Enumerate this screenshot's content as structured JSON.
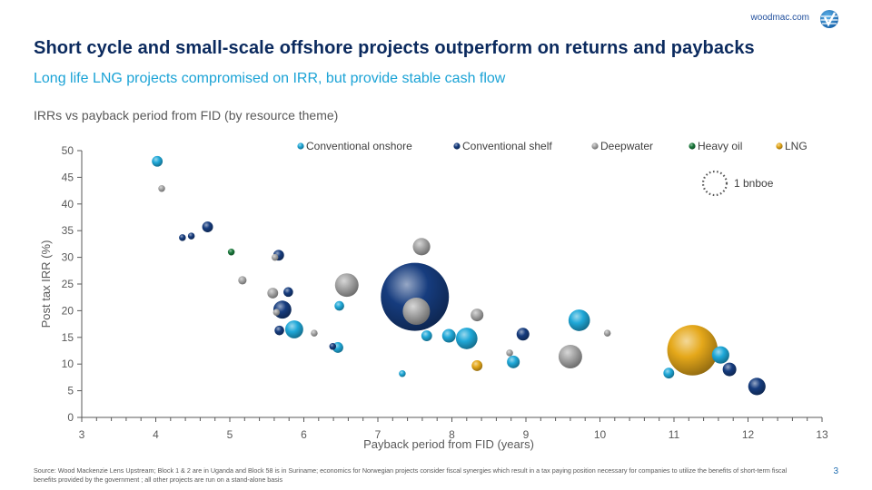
{
  "header": {
    "site": "woodmac.com",
    "logo_icon": "woodmac-globe-icon",
    "title": "Short cycle and small-scale  offshore projects outperform  on returns and paybacks",
    "subtitle": "Long life LNG projects compromised on IRR, but provide stable cash flow"
  },
  "chart_title": "IRRs vs payback period from FID (by resource theme)",
  "footer": {
    "source": "Source: Wood Mackenzie Lens Upstream; Block 1 & 2 are in Uganda and Block 58 is in Suriname; economics for Norwegian projects consider fiscal synergies which result in a tax paying position necessary for companies to utilize the benefits of short-term fiscal benefits provided by the government ; all other projects are run on a stand-alone basis",
    "page_number": "3"
  },
  "chart_data": {
    "type": "scatter",
    "title": "IRRs vs payback period from FID (by resource theme)",
    "xlabel": "Payback period from FID (years)",
    "ylabel": "Post tax IRR (%)",
    "xlim": [
      3,
      13
    ],
    "ylim": [
      0,
      50
    ],
    "xticks": [
      "3",
      "4",
      "5",
      "6",
      "7",
      "8",
      "9",
      "10",
      "11",
      "12",
      "13"
    ],
    "yticks": [
      "0",
      "5",
      "10",
      "15",
      "20",
      "25",
      "30",
      "35",
      "40",
      "45",
      "50"
    ],
    "grid": false,
    "legend_position": "top",
    "size_reference": {
      "label": "1 bnboe",
      "size": 1.0
    },
    "series": [
      {
        "name": "Conventional onshore",
        "color": "#1fa8d8",
        "points": [
          {
            "x": 4.02,
            "y": 48.0,
            "size": 0.05
          },
          {
            "x": 5.87,
            "y": 16.5,
            "size": 0.14
          },
          {
            "x": 6.46,
            "y": 13.1,
            "size": 0.05
          },
          {
            "x": 6.48,
            "y": 20.9,
            "size": 0.04
          },
          {
            "x": 7.33,
            "y": 8.2,
            "size": 0.02
          },
          {
            "x": 7.66,
            "y": 15.3,
            "size": 0.05
          },
          {
            "x": 7.96,
            "y": 15.3,
            "size": 0.08
          },
          {
            "x": 8.2,
            "y": 14.8,
            "size": 0.2
          },
          {
            "x": 8.83,
            "y": 10.4,
            "size": 0.07
          },
          {
            "x": 9.72,
            "y": 18.2,
            "size": 0.2
          },
          {
            "x": 10.93,
            "y": 8.3,
            "size": 0.05
          },
          {
            "x": 11.63,
            "y": 11.7,
            "size": 0.13
          }
        ]
      },
      {
        "name": "Conventional shelf",
        "color": "#163c7e",
        "points": [
          {
            "x": 4.36,
            "y": 33.7,
            "size": 0.02
          },
          {
            "x": 4.48,
            "y": 34.0,
            "size": 0.02
          },
          {
            "x": 4.7,
            "y": 35.7,
            "size": 0.05
          },
          {
            "x": 5.66,
            "y": 30.4,
            "size": 0.05
          },
          {
            "x": 5.79,
            "y": 23.5,
            "size": 0.04
          },
          {
            "x": 5.71,
            "y": 20.2,
            "size": 0.14
          },
          {
            "x": 5.67,
            "y": 16.3,
            "size": 0.04
          },
          {
            "x": 6.39,
            "y": 13.3,
            "size": 0.02
          },
          {
            "x": 7.5,
            "y": 22.6,
            "size": 2.0
          },
          {
            "x": 8.96,
            "y": 15.6,
            "size": 0.07
          },
          {
            "x": 11.75,
            "y": 9.0,
            "size": 0.08
          },
          {
            "x": 12.12,
            "y": 5.8,
            "size": 0.13
          }
        ]
      },
      {
        "name": "Deepwater",
        "color": "#a6a6a6",
        "points": [
          {
            "x": 4.08,
            "y": 42.9,
            "size": 0.02
          },
          {
            "x": 5.17,
            "y": 25.7,
            "size": 0.03
          },
          {
            "x": 5.61,
            "y": 30.0,
            "size": 0.02
          },
          {
            "x": 5.58,
            "y": 23.3,
            "size": 0.05
          },
          {
            "x": 5.63,
            "y": 19.7,
            "size": 0.02
          },
          {
            "x": 6.14,
            "y": 15.8,
            "size": 0.02
          },
          {
            "x": 6.58,
            "y": 24.8,
            "size": 0.24
          },
          {
            "x": 7.52,
            "y": 19.9,
            "size": 0.32
          },
          {
            "x": 7.59,
            "y": 32.0,
            "size": 0.13
          },
          {
            "x": 8.34,
            "y": 19.2,
            "size": 0.07
          },
          {
            "x": 8.78,
            "y": 12.1,
            "size": 0.02
          },
          {
            "x": 9.6,
            "y": 11.4,
            "size": 0.24
          },
          {
            "x": 10.1,
            "y": 15.8,
            "size": 0.02
          }
        ]
      },
      {
        "name": "Heavy oil",
        "color": "#1a7a3c",
        "points": [
          {
            "x": 5.02,
            "y": 31.0,
            "size": 0.02
          }
        ]
      },
      {
        "name": "LNG",
        "color": "#e5a81a",
        "points": [
          {
            "x": 8.34,
            "y": 9.7,
            "size": 0.05
          },
          {
            "x": 11.25,
            "y": 12.6,
            "size": 1.1
          }
        ]
      }
    ]
  }
}
